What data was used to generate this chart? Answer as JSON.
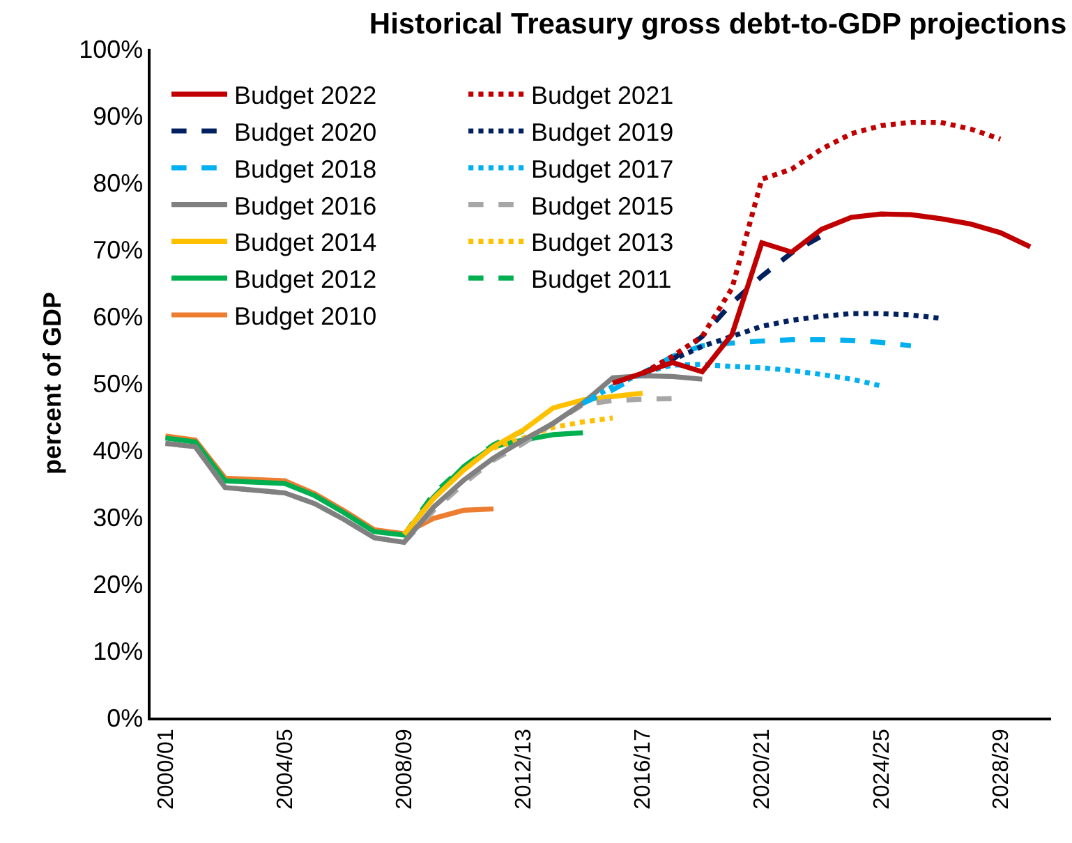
{
  "chart_data": {
    "type": "line",
    "title": "Historical Treasury gross debt-to-GDP projections",
    "ylabel": "percent of GDP",
    "categories": [
      "2000/01",
      null,
      null,
      null,
      "2004/05",
      null,
      null,
      null,
      "2008/09",
      null,
      null,
      null,
      "2012/13",
      null,
      null,
      null,
      "2016/17",
      null,
      null,
      null,
      "2020/21",
      null,
      null,
      null,
      "2024/25",
      null,
      null,
      null,
      "2028/29",
      null
    ],
    "ylim": [
      0,
      100
    ],
    "yticks": [
      {
        "value": 0,
        "label": "0%"
      },
      {
        "value": 10,
        "label": "10%"
      },
      {
        "value": 20,
        "label": "20%"
      },
      {
        "value": 30,
        "label": "30%"
      },
      {
        "value": 40,
        "label": "40%"
      },
      {
        "value": 50,
        "label": "50%"
      },
      {
        "value": 60,
        "label": "60%"
      },
      {
        "value": 70,
        "label": "70%"
      },
      {
        "value": 80,
        "label": "80%"
      },
      {
        "value": 90,
        "label": "90%"
      },
      {
        "value": 100,
        "label": "100%"
      }
    ],
    "legend": "top left",
    "marker": "none",
    "series": [
      {
        "name": "Budget 2022",
        "color": "#c00000",
        "line_style": "solid",
        "values": [
          null,
          null,
          null,
          null,
          null,
          null,
          null,
          null,
          null,
          null,
          null,
          null,
          null,
          null,
          null,
          50.0,
          51.5,
          53.1,
          51.7,
          57.3,
          71.0,
          69.6,
          73.0,
          74.8,
          75.3,
          75.2,
          74.6,
          73.8,
          72.5,
          70.4
        ]
      },
      {
        "name": "Budget 2021",
        "color": "#c00000",
        "line_style": "dotted",
        "values": [
          null,
          null,
          null,
          null,
          null,
          null,
          null,
          null,
          null,
          null,
          null,
          null,
          null,
          null,
          null,
          null,
          51.5,
          54.0,
          57.0,
          64.2,
          80.5,
          82.0,
          85.0,
          87.3,
          88.5,
          89.0,
          89.0,
          88.0,
          86.5,
          null
        ]
      },
      {
        "name": "Budget 2020",
        "color": "#002060",
        "line_style": "dashed",
        "values": [
          null,
          null,
          null,
          null,
          null,
          null,
          null,
          null,
          null,
          null,
          null,
          null,
          null,
          null,
          null,
          null,
          51.5,
          53.5,
          57.0,
          62.0,
          66.0,
          69.5,
          72.0,
          null,
          null,
          null,
          null,
          null,
          null,
          null
        ]
      },
      {
        "name": "Budget 2019",
        "color": "#002060",
        "line_style": "dotted",
        "values": [
          null,
          null,
          null,
          null,
          null,
          null,
          null,
          null,
          null,
          null,
          null,
          null,
          null,
          null,
          null,
          null,
          51.5,
          53.5,
          55.5,
          57.0,
          58.5,
          59.4,
          60.0,
          60.4,
          60.4,
          60.2,
          59.7,
          null,
          null,
          null
        ]
      },
      {
        "name": "Budget 2018",
        "color": "#00b0f0",
        "line_style": "dashed",
        "values": [
          null,
          null,
          null,
          null,
          null,
          null,
          null,
          null,
          null,
          null,
          null,
          null,
          null,
          null,
          47.0,
          49.0,
          51.5,
          54.0,
          55.6,
          56.0,
          56.3,
          56.5,
          56.5,
          56.4,
          56.1,
          55.6,
          null,
          null,
          null,
          null
        ]
      },
      {
        "name": "Budget 2017",
        "color": "#00b0f0",
        "line_style": "dotted",
        "values": [
          null,
          null,
          null,
          null,
          null,
          null,
          null,
          null,
          null,
          null,
          null,
          null,
          null,
          null,
          47.0,
          49.5,
          51.5,
          52.7,
          52.8,
          52.5,
          52.3,
          51.9,
          51.3,
          50.6,
          49.6,
          null,
          null,
          null,
          null,
          null
        ]
      },
      {
        "name": "Budget 2016",
        "color": "#808080",
        "line_style": "solid",
        "values": [
          41.0,
          40.5,
          34.4,
          34.0,
          33.6,
          32.0,
          29.6,
          26.9,
          26.2,
          31.5,
          35.5,
          38.8,
          41.5,
          44.0,
          47.0,
          50.8,
          51.1,
          51.0,
          50.6,
          null,
          null,
          null,
          null,
          null,
          null,
          null,
          null,
          null,
          null,
          null
        ]
      },
      {
        "name": "Budget 2015",
        "color": "#a6a6a6",
        "line_style": "dashed",
        "values": [
          41.0,
          40.5,
          34.4,
          34.0,
          33.6,
          32.0,
          29.6,
          26.9,
          26.2,
          31.0,
          35.0,
          38.5,
          41.0,
          44.0,
          46.8,
          47.4,
          47.6,
          47.7,
          null,
          null,
          null,
          null,
          null,
          null,
          null,
          null,
          null,
          null,
          null,
          null
        ]
      },
      {
        "name": "Budget 2014",
        "color": "#ffc000",
        "line_style": "solid",
        "values": [
          null,
          null,
          null,
          null,
          null,
          null,
          null,
          null,
          27.4,
          32.8,
          37.0,
          40.5,
          43.0,
          46.3,
          47.5,
          48.0,
          48.5,
          null,
          null,
          null,
          null,
          null,
          null,
          null,
          null,
          null,
          null,
          null,
          null,
          null
        ]
      },
      {
        "name": "Budget 2013",
        "color": "#ffc000",
        "line_style": "dotted",
        "values": [
          null,
          null,
          null,
          null,
          null,
          null,
          null,
          null,
          null,
          null,
          null,
          40.3,
          41.8,
          43.4,
          44.2,
          44.8,
          null,
          null,
          null,
          null,
          null,
          null,
          null,
          null,
          null,
          null,
          null,
          null,
          null,
          null
        ]
      },
      {
        "name": "Budget 2012",
        "color": "#00b050",
        "line_style": "solid",
        "values": [
          41.8,
          41.2,
          35.4,
          35.2,
          35.0,
          33.2,
          30.6,
          27.8,
          27.3,
          33.0,
          37.5,
          40.5,
          41.5,
          42.3,
          42.6,
          null,
          null,
          null,
          null,
          null,
          null,
          null,
          null,
          null,
          null,
          null,
          null,
          null,
          null,
          null
        ]
      },
      {
        "name": "Budget 2011",
        "color": "#00b050",
        "line_style": "dashed",
        "values": [
          null,
          null,
          null,
          null,
          null,
          null,
          null,
          null,
          27.3,
          33.5,
          37.5,
          40.8,
          42.9,
          null,
          null,
          null,
          null,
          null,
          null,
          null,
          null,
          null,
          null,
          null,
          null,
          null,
          null,
          null,
          null,
          null
        ]
      },
      {
        "name": "Budget 2010",
        "color": "#ed7d31",
        "line_style": "solid",
        "values": [
          42.1,
          41.5,
          35.8,
          35.6,
          35.4,
          33.5,
          30.9,
          28.1,
          27.5,
          29.8,
          31.0,
          31.2,
          null,
          null,
          null,
          null,
          null,
          null,
          null,
          null,
          null,
          null,
          null,
          null,
          null,
          null,
          null,
          null,
          null,
          null
        ]
      }
    ]
  }
}
